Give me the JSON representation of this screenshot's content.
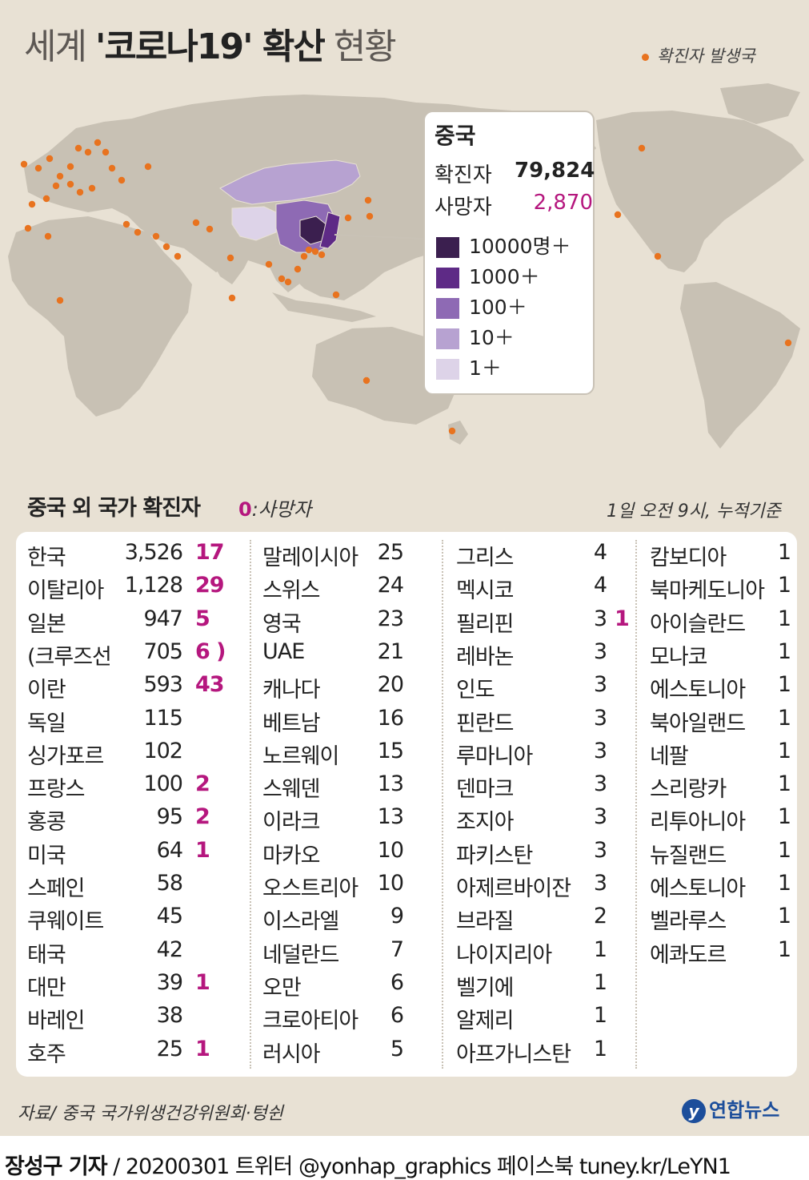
{
  "title": {
    "pre": "세계 ",
    "bold": "'코로나19' 확산",
    "post": " 현황"
  },
  "map_legend": {
    "label": "확진자 발생국",
    "dot_color": "#e8731f"
  },
  "china": {
    "name": "중국",
    "confirmed_label": "확진자",
    "confirmed": "79,824",
    "deaths_label": "사망자",
    "deaths": "2,870",
    "scale": [
      {
        "label": "10000명＋",
        "color": "#3b1f4f"
      },
      {
        "label": "1000＋",
        "color": "#5e2a86"
      },
      {
        "label": "100＋",
        "color": "#8e6ab4"
      },
      {
        "label": "10＋",
        "color": "#b7a2d1"
      },
      {
        "label": "1＋",
        "color": "#ddd3e8"
      }
    ]
  },
  "colors": {
    "deaths": "#b5177e",
    "land": "#c8c1b4",
    "panel": "#e8e1d4"
  },
  "section": {
    "title": "중국 외 국가 확진자",
    "death_key": "0",
    "death_key_label": ":사망자",
    "basis": "1일 오전 9시, 누적기준"
  },
  "columns": [
    [
      {
        "name": "한국",
        "count": "3,526",
        "deaths": "17"
      },
      {
        "name": "이탈리아",
        "count": "1,128",
        "deaths": "29"
      },
      {
        "name": "일본",
        "count": "947",
        "deaths": "5"
      },
      {
        "name": "(크루즈선",
        "count": "705",
        "deaths": "6 )"
      },
      {
        "name": "이란",
        "count": "593",
        "deaths": "43"
      },
      {
        "name": "독일",
        "count": "115",
        "deaths": ""
      },
      {
        "name": "싱가포르",
        "count": "102",
        "deaths": ""
      },
      {
        "name": "프랑스",
        "count": "100",
        "deaths": "2"
      },
      {
        "name": "홍콩",
        "count": "95",
        "deaths": "2"
      },
      {
        "name": "미국",
        "count": "64",
        "deaths": "1"
      },
      {
        "name": "스페인",
        "count": "58",
        "deaths": ""
      },
      {
        "name": "쿠웨이트",
        "count": "45",
        "deaths": ""
      },
      {
        "name": "태국",
        "count": "42",
        "deaths": ""
      },
      {
        "name": "대만",
        "count": "39",
        "deaths": "1"
      },
      {
        "name": "바레인",
        "count": "38",
        "deaths": ""
      },
      {
        "name": "호주",
        "count": "25",
        "deaths": "1"
      }
    ],
    [
      {
        "name": "말레이시아",
        "count": "25",
        "deaths": ""
      },
      {
        "name": "스위스",
        "count": "24",
        "deaths": ""
      },
      {
        "name": "영국",
        "count": "23",
        "deaths": ""
      },
      {
        "name": "UAE",
        "count": "21",
        "deaths": ""
      },
      {
        "name": "캐나다",
        "count": "20",
        "deaths": ""
      },
      {
        "name": "베트남",
        "count": "16",
        "deaths": ""
      },
      {
        "name": "노르웨이",
        "count": "15",
        "deaths": ""
      },
      {
        "name": "스웨덴",
        "count": "13",
        "deaths": ""
      },
      {
        "name": "이라크",
        "count": "13",
        "deaths": ""
      },
      {
        "name": "마카오",
        "count": "10",
        "deaths": ""
      },
      {
        "name": "오스트리아",
        "count": "10",
        "deaths": ""
      },
      {
        "name": "이스라엘",
        "count": "9",
        "deaths": ""
      },
      {
        "name": "네덜란드",
        "count": "7",
        "deaths": ""
      },
      {
        "name": "오만",
        "count": "6",
        "deaths": ""
      },
      {
        "name": "크로아티아",
        "count": "6",
        "deaths": ""
      },
      {
        "name": "러시아",
        "count": "5",
        "deaths": ""
      }
    ],
    [
      {
        "name": "그리스",
        "count": "4",
        "deaths": ""
      },
      {
        "name": "멕시코",
        "count": "4",
        "deaths": ""
      },
      {
        "name": "필리핀",
        "count": "3",
        "deaths": "1"
      },
      {
        "name": "레바논",
        "count": "3",
        "deaths": ""
      },
      {
        "name": "인도",
        "count": "3",
        "deaths": ""
      },
      {
        "name": "핀란드",
        "count": "3",
        "deaths": ""
      },
      {
        "name": "루마니아",
        "count": "3",
        "deaths": ""
      },
      {
        "name": "덴마크",
        "count": "3",
        "deaths": ""
      },
      {
        "name": "조지아",
        "count": "3",
        "deaths": ""
      },
      {
        "name": "파키스탄",
        "count": "3",
        "deaths": ""
      },
      {
        "name": "아제르바이잔",
        "count": "3",
        "deaths": ""
      },
      {
        "name": "브라질",
        "count": "2",
        "deaths": ""
      },
      {
        "name": "나이지리아",
        "count": "1",
        "deaths": ""
      },
      {
        "name": "벨기에",
        "count": "1",
        "deaths": ""
      },
      {
        "name": "알제리",
        "count": "1",
        "deaths": ""
      },
      {
        "name": "아프가니스탄",
        "count": "1",
        "deaths": ""
      }
    ],
    [
      {
        "name": "캄보디아",
        "count": "1",
        "deaths": ""
      },
      {
        "name": "북마케도니아",
        "count": "1",
        "deaths": ""
      },
      {
        "name": "아이슬란드",
        "count": "1",
        "deaths": ""
      },
      {
        "name": "모나코",
        "count": "1",
        "deaths": ""
      },
      {
        "name": "에스토니아",
        "count": "1",
        "deaths": ""
      },
      {
        "name": "북아일랜드",
        "count": "1",
        "deaths": ""
      },
      {
        "name": "네팔",
        "count": "1",
        "deaths": ""
      },
      {
        "name": "스리랑카",
        "count": "1",
        "deaths": ""
      },
      {
        "name": "리투아니아",
        "count": "1",
        "deaths": ""
      },
      {
        "name": "뉴질랜드",
        "count": "1",
        "deaths": ""
      },
      {
        "name": "에스토니아",
        "count": "1",
        "deaths": ""
      },
      {
        "name": "벨라루스",
        "count": "1",
        "deaths": ""
      },
      {
        "name": "에콰도르",
        "count": "1",
        "deaths": ""
      }
    ]
  ],
  "source": "자료/ 중국 국가위생건강위원회·텅쉰",
  "logo": {
    "mark": "y",
    "text": "연합뉴스"
  },
  "footer": {
    "reporter": "장성구 기자",
    "rest": " / 20200301  트위터 @yonhap_graphics  페이스북 tuney.kr/LeYN1"
  }
}
